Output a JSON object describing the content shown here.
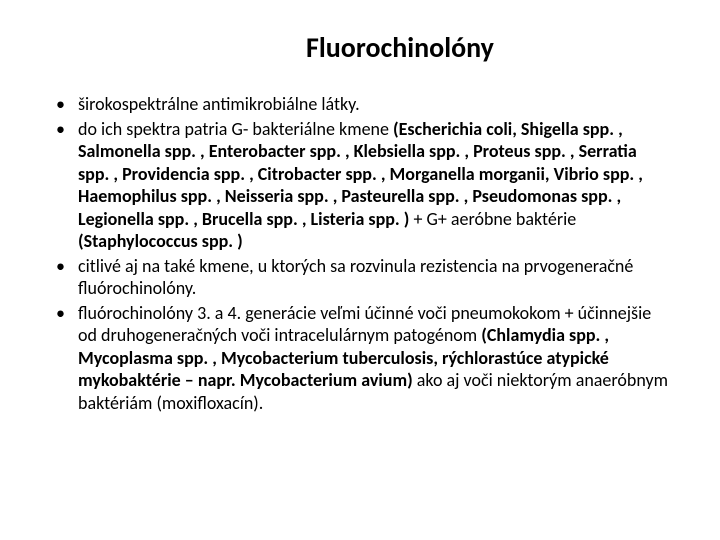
{
  "title": "Fluorochinolóny",
  "bullets": [
    {
      "pre": "širokospektrálne antimikrobiálne látky.",
      "bold": "",
      "post": ""
    },
    {
      "pre": "do ich spektra patria G- bakteriálne kmene ",
      "bold": "(Escherichia coli, Shigella spp. , Salmonella spp. , Enterobacter spp. , Klebsiella spp. , Proteus spp. , Serratia spp. , Providencia spp. , Citrobacter spp. , Morganella morganii, Vibrio spp. , Haemophilus spp. , Neisseria spp. , Pasteurella spp. , Pseudomonas spp. , Legionella spp. , Brucella spp. , Listeria spp. )",
      "post": " + G+ aeróbne baktérie ",
      "bold2": "(Staphylococcus spp. )",
      "post2": ""
    },
    {
      "pre": "citlivé aj na také kmene, u ktorých sa rozvinula rezistencia na prvogeneračné fluórochinolóny.",
      "bold": "",
      "post": ""
    },
    {
      "pre": "fluórochinolóny 3. a 4. generácie veľmi účinné voči pneumokokom + účinnejšie od druhogeneračných voči intracelulárnym patogénom ",
      "bold": "(Chlamydia spp. , Mycoplasma spp. , Mycobacterium tuberculosis, rýchlorastúce atypické mykobaktérie – napr. Mycobacterium avium)",
      "post": " ako aj voči niektorým anaeróbnym baktériám (moxifloxacín)."
    }
  ]
}
